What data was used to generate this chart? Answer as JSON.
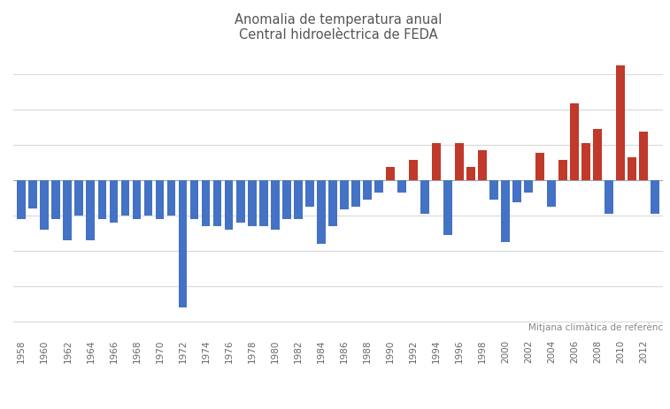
{
  "title_line1": "Anomalia de temperatura anual",
  "title_line2": "Central hidroelèctrica de FEDA",
  "annotation": "Mitjana climàtica de referènc",
  "color_positive": "#c0392b",
  "color_negative": "#4472c4",
  "background_color": "#ffffff",
  "years": [
    1958,
    1959,
    1960,
    1961,
    1962,
    1963,
    1964,
    1965,
    1966,
    1967,
    1968,
    1969,
    1970,
    1971,
    1972,
    1973,
    1974,
    1975,
    1976,
    1977,
    1978,
    1979,
    1980,
    1981,
    1982,
    1983,
    1984,
    1985,
    1986,
    1987,
    1988,
    1989,
    1990,
    1991,
    1992,
    1993,
    1994,
    1995,
    1996,
    1997,
    1998,
    1999,
    2000,
    2001,
    2002,
    2003,
    2004,
    2005,
    2006,
    2007,
    2008,
    2009,
    2010,
    2011,
    2012,
    2013
  ],
  "values": [
    -0.55,
    -0.4,
    -0.7,
    -0.55,
    -0.85,
    -0.5,
    -0.85,
    -0.55,
    -0.6,
    -0.5,
    -0.55,
    -0.5,
    -0.55,
    -0.5,
    -1.8,
    -0.55,
    -0.65,
    -0.65,
    -0.7,
    -0.6,
    -0.65,
    -0.65,
    -0.7,
    -0.55,
    -0.55,
    -0.38,
    -0.9,
    -0.65,
    -0.42,
    -0.38,
    -0.28,
    -0.18,
    0.18,
    -0.18,
    0.28,
    -0.48,
    0.52,
    -0.78,
    0.52,
    0.18,
    0.42,
    -0.28,
    -0.88,
    -0.32,
    -0.18,
    0.38,
    -0.38,
    0.28,
    1.08,
    0.52,
    0.72,
    -0.48,
    1.62,
    0.32,
    0.68,
    -0.48
  ],
  "ylim_min": -2.2,
  "ylim_max": 1.85,
  "grid_color": "#d9d9d9",
  "grid_linewidth": 0.8,
  "bar_width": 0.75,
  "title_fontsize": 10.5,
  "tick_fontsize": 7.5,
  "annotation_fontsize": 7.5,
  "title_color": "#555555",
  "tick_color": "#666666",
  "annotation_color": "#888888",
  "spine_color": "#cccccc"
}
